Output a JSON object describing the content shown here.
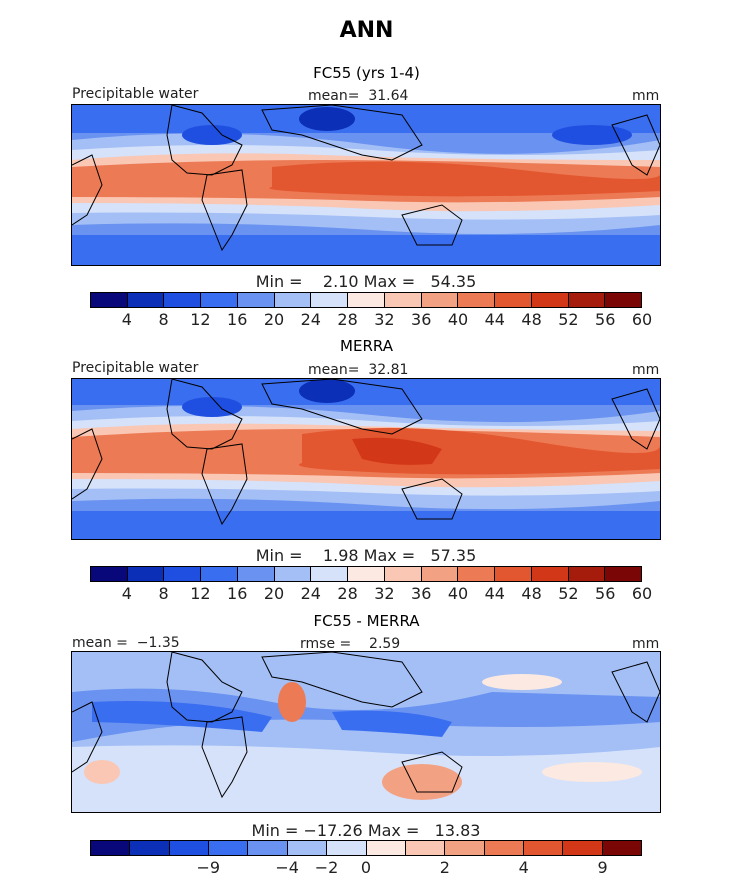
{
  "title": "ANN",
  "panels": [
    {
      "subtitle": "FC55 (yrs 1-4)",
      "variable_label": "Precipitable water",
      "center_label": "mean=  31.64",
      "units": "mm",
      "minmax": "Min =    2.10 Max =   54.35",
      "colorbar_ticks": [
        "4",
        "8",
        "12",
        "16",
        "20",
        "24",
        "28",
        "32",
        "36",
        "40",
        "44",
        "48",
        "52",
        "56",
        "60"
      ]
    },
    {
      "subtitle": "MERRA",
      "variable_label": "Precipitable water",
      "center_label": "mean=  32.81",
      "units": "mm",
      "minmax": "Min =    1.98 Max =   57.35",
      "colorbar_ticks": [
        "4",
        "8",
        "12",
        "16",
        "20",
        "24",
        "28",
        "32",
        "36",
        "40",
        "44",
        "48",
        "52",
        "56",
        "60"
      ]
    },
    {
      "subtitle": "FC55 - MERRA",
      "variable_label": "mean =  −1.35",
      "center_label": "rmse =    2.59",
      "units": "mm",
      "minmax": "Min = −17.26 Max =   13.83",
      "colorbar_ticks": [
        "−9",
        "−4",
        "−2",
        "0",
        "2",
        "4",
        "9"
      ]
    }
  ],
  "colors": {
    "abs_scale": [
      "#08087a",
      "#0b2fb6",
      "#1f4fe0",
      "#3a6ef0",
      "#6a92f0",
      "#a3bff6",
      "#d6e2fa",
      "#fbe9e2",
      "#f9c7b4",
      "#f3a183",
      "#ec7a55",
      "#e35730",
      "#d23817",
      "#a61c0c",
      "#7a0606"
    ],
    "diff_scale": [
      "#08087a",
      "#0b2fb6",
      "#1f4fe0",
      "#3a6ef0",
      "#6a92f0",
      "#a3bff6",
      "#d6e2fa",
      "#fbe9e2",
      "#f9c7b4",
      "#f3a183",
      "#ec7a55",
      "#e35730",
      "#d23817",
      "#7a0606"
    ]
  }
}
